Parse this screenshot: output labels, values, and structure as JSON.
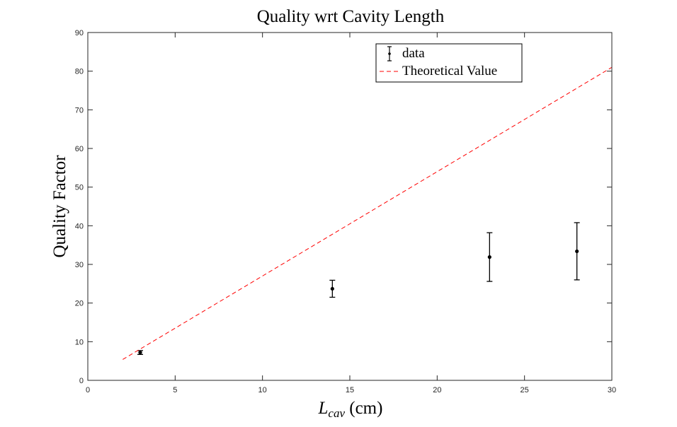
{
  "chart_data": {
    "type": "scatter",
    "title": "Quality wrt Cavity Length",
    "xlabel_main": "L",
    "xlabel_sub": "cav",
    "xlabel_unit": " (cm)",
    "ylabel": "Quality Factor",
    "xlim": [
      0,
      30
    ],
    "ylim": [
      0,
      90
    ],
    "xticks": [
      0,
      5,
      10,
      15,
      20,
      25,
      30
    ],
    "yticks": [
      0,
      10,
      20,
      30,
      40,
      50,
      60,
      70,
      80,
      90
    ],
    "legend_position": "top-right",
    "series": [
      {
        "name": "data",
        "kind": "errorbar",
        "color": "#000000",
        "points": [
          {
            "x": 3,
            "y": 7.2,
            "err": 0.5
          },
          {
            "x": 14,
            "y": 23.7,
            "err": 2.2
          },
          {
            "x": 23,
            "y": 31.9,
            "err": 6.3
          },
          {
            "x": 28,
            "y": 33.4,
            "err": 7.4
          }
        ]
      },
      {
        "name": "Theoretical Value",
        "kind": "line",
        "color": "#ff0000",
        "dash": "dashed",
        "points": [
          {
            "x": 2,
            "y": 5.4
          },
          {
            "x": 30,
            "y": 81
          }
        ]
      }
    ]
  }
}
